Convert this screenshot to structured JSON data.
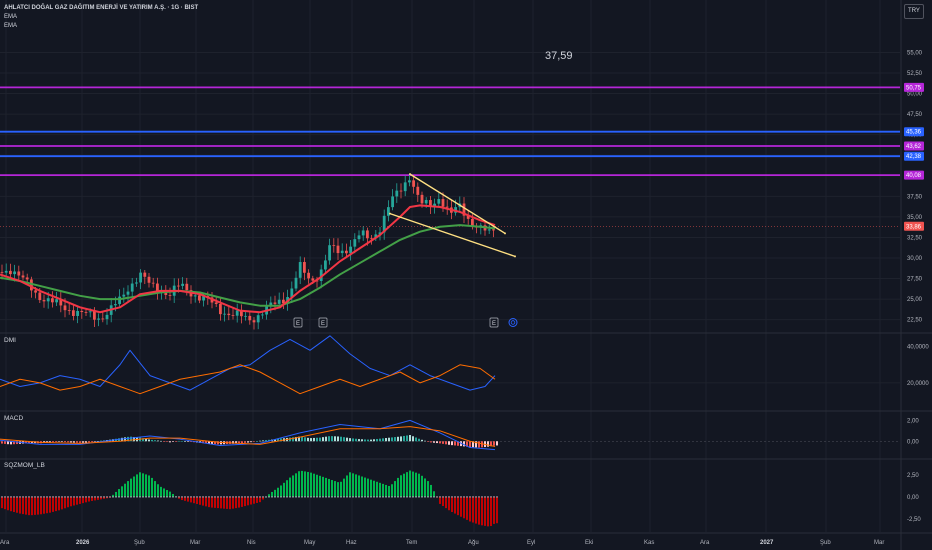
{
  "header": {
    "title": "AHLATCI DOĞAL GAZ DAĞITIM ENERJİ VE YATIRIM A.Ş. · 1G · BIST",
    "indicator1": "EMA",
    "indicator2": "EMA",
    "currency": "TRY",
    "price_readout": "37,59"
  },
  "colors": {
    "background": "#131722",
    "grid": "#1e222d",
    "up": "#26a69a",
    "down": "#ef5350",
    "ema_fast": "#f23645",
    "ema_slow": "#43a047",
    "magenta_line": "#b526d8",
    "blue_line": "#2962ff",
    "trend_line": "#ffe082",
    "dmi_plus": "#2962ff",
    "dmi_minus": "#ff6d00",
    "macd_line": "#2962ff",
    "signal_line": "#ff6d00",
    "sqz_pos": "#00c853",
    "sqz_neg": "#d50000"
  },
  "chart_data": [
    {
      "type": "candlestick",
      "pane": "price",
      "y_ticks": [
        "55,00",
        "52,50",
        "50,00",
        "47,50",
        "45,00",
        "42,50",
        "40,00",
        "37,50",
        "35,00",
        "32,50",
        "30,00",
        "27,50",
        "25,00",
        "22,50"
      ],
      "ylim": [
        21,
        57
      ],
      "last_price": 33.86,
      "last_price_label": "33,86",
      "horizontal_levels": [
        {
          "value": 50.75,
          "label": "50,75",
          "color": "magenta"
        },
        {
          "value": 45.36,
          "label": "45,36",
          "color": "blue"
        },
        {
          "value": 43.62,
          "label": "43,62",
          "color": "magenta"
        },
        {
          "value": 42.38,
          "label": "42,38",
          "color": "blue"
        },
        {
          "value": 40.08,
          "label": "40,08",
          "color": "magenta"
        }
      ],
      "event_markers": [
        "E",
        "E",
        "E"
      ],
      "series": [
        {
          "name": "EMA",
          "role": "fast"
        },
        {
          "name": "EMA",
          "role": "slow"
        }
      ],
      "close_path": [
        [
          0,
          28.3
        ],
        [
          10,
          28.8
        ],
        [
          20,
          27.6
        ],
        [
          30,
          26.5
        ],
        [
          40,
          25.4
        ],
        [
          50,
          24.6
        ],
        [
          60,
          24.2
        ],
        [
          70,
          23.8
        ],
        [
          80,
          23.2
        ],
        [
          90,
          23.0
        ],
        [
          100,
          22.8
        ],
        [
          110,
          23.6
        ],
        [
          120,
          24.8
        ],
        [
          130,
          26.8
        ],
        [
          140,
          28.0
        ],
        [
          150,
          26.6
        ],
        [
          160,
          26.2
        ],
        [
          170,
          25.6
        ],
        [
          180,
          26.6
        ],
        [
          190,
          26.0
        ],
        [
          200,
          25.2
        ],
        [
          210,
          24.6
        ],
        [
          220,
          23.8
        ],
        [
          230,
          23.2
        ],
        [
          240,
          22.8
        ],
        [
          250,
          22.6
        ],
        [
          260,
          23.2
        ],
        [
          270,
          24.0
        ],
        [
          280,
          24.8
        ],
        [
          290,
          25.8
        ],
        [
          300,
          28.8
        ],
        [
          310,
          27.2
        ],
        [
          320,
          28.2
        ],
        [
          330,
          31.2
        ],
        [
          340,
          30.6
        ],
        [
          350,
          31.6
        ],
        [
          360,
          32.8
        ],
        [
          370,
          32.2
        ],
        [
          380,
          33.8
        ],
        [
          390,
          36.6
        ],
        [
          400,
          38.2
        ],
        [
          410,
          40.2
        ],
        [
          420,
          36.6
        ],
        [
          430,
          36.2
        ],
        [
          440,
          37.6
        ],
        [
          450,
          35.2
        ],
        [
          460,
          36.2
        ],
        [
          470,
          34.6
        ],
        [
          480,
          33.6
        ],
        [
          490,
          32.8
        ],
        [
          495,
          33.8
        ]
      ],
      "ema_fast": [
        [
          0,
          28.0
        ],
        [
          20,
          27.2
        ],
        [
          40,
          26.0
        ],
        [
          60,
          25.0
        ],
        [
          80,
          24.0
        ],
        [
          100,
          23.4
        ],
        [
          120,
          24.0
        ],
        [
          140,
          25.6
        ],
        [
          160,
          26.0
        ],
        [
          180,
          26.0
        ],
        [
          200,
          25.6
        ],
        [
          220,
          24.6
        ],
        [
          240,
          23.6
        ],
        [
          260,
          23.4
        ],
        [
          280,
          24.0
        ],
        [
          300,
          26.0
        ],
        [
          320,
          27.6
        ],
        [
          340,
          29.6
        ],
        [
          360,
          31.2
        ],
        [
          380,
          32.8
        ],
        [
          400,
          35.0
        ],
        [
          410,
          36.2
        ],
        [
          420,
          36.4
        ],
        [
          440,
          36.2
        ],
        [
          460,
          35.6
        ],
        [
          480,
          34.6
        ],
        [
          495,
          34.0
        ]
      ],
      "ema_slow": [
        [
          0,
          27.6
        ],
        [
          20,
          27.2
        ],
        [
          40,
          26.6
        ],
        [
          60,
          26.0
        ],
        [
          80,
          25.4
        ],
        [
          100,
          25.0
        ],
        [
          120,
          25.0
        ],
        [
          140,
          25.4
        ],
        [
          160,
          25.8
        ],
        [
          180,
          26.0
        ],
        [
          200,
          25.8
        ],
        [
          220,
          25.2
        ],
        [
          240,
          24.6
        ],
        [
          260,
          24.2
        ],
        [
          280,
          24.2
        ],
        [
          300,
          25.0
        ],
        [
          320,
          26.4
        ],
        [
          340,
          28.0
        ],
        [
          360,
          29.4
        ],
        [
          380,
          30.8
        ],
        [
          400,
          32.2
        ],
        [
          420,
          33.2
        ],
        [
          440,
          33.8
        ],
        [
          460,
          34.0
        ],
        [
          480,
          33.8
        ],
        [
          495,
          33.6
        ]
      ],
      "trend_lines": [
        [
          [
            410,
            40.2
          ],
          [
            505,
            33.0
          ]
        ],
        [
          [
            390,
            35.4
          ],
          [
            515,
            30.2
          ]
        ]
      ]
    },
    {
      "type": "line",
      "pane": "DMI",
      "title": "DMI",
      "y_ticks": [
        "40,0000",
        "20,0000"
      ],
      "ylim": [
        5,
        47
      ],
      "series": [
        {
          "path": [
            [
              0,
              22
            ],
            [
              20,
              18
            ],
            [
              40,
              20
            ],
            [
              60,
              24
            ],
            [
              80,
              22
            ],
            [
              100,
              18
            ],
            [
              120,
              30
            ],
            [
              130,
              38
            ],
            [
              150,
              24
            ],
            [
              170,
              20
            ],
            [
              190,
              16
            ],
            [
              210,
              22
            ],
            [
              230,
              28
            ],
            [
              250,
              30
            ],
            [
              270,
              38
            ],
            [
              290,
              44
            ],
            [
              310,
              38
            ],
            [
              330,
              46
            ],
            [
              350,
              36
            ],
            [
              370,
              28
            ],
            [
              390,
              24
            ],
            [
              410,
              30
            ],
            [
              430,
              24
            ],
            [
              450,
              20
            ],
            [
              470,
              16
            ],
            [
              485,
              18
            ],
            [
              495,
              24
            ]
          ]
        },
        {
          "path": [
            [
              0,
              18
            ],
            [
              20,
              22
            ],
            [
              40,
              20
            ],
            [
              60,
              16
            ],
            [
              80,
              18
            ],
            [
              100,
              22
            ],
            [
              120,
              18
            ],
            [
              140,
              14
            ],
            [
              160,
              18
            ],
            [
              180,
              22
            ],
            [
              200,
              24
            ],
            [
              220,
              26
            ],
            [
              240,
              30
            ],
            [
              260,
              26
            ],
            [
              280,
              20
            ],
            [
              300,
              14
            ],
            [
              320,
              18
            ],
            [
              340,
              22
            ],
            [
              360,
              18
            ],
            [
              380,
              22
            ],
            [
              400,
              26
            ],
            [
              420,
              20
            ],
            [
              440,
              24
            ],
            [
              460,
              30
            ],
            [
              480,
              28
            ],
            [
              495,
              22
            ]
          ]
        }
      ]
    },
    {
      "type": "bar+line",
      "pane": "MACD",
      "title": "MACD",
      "y_ticks": [
        "2,00",
        "0,00"
      ],
      "ylim": [
        -1.6,
        2.8
      ],
      "histogram": [
        [
          0,
          -0.2
        ],
        [
          10,
          -0.3
        ],
        [
          20,
          -0.25
        ],
        [
          30,
          -0.15
        ],
        [
          40,
          -0.2
        ],
        [
          50,
          -0.1
        ],
        [
          60,
          -0.05
        ],
        [
          70,
          -0.1
        ],
        [
          80,
          -0.15
        ],
        [
          90,
          -0.1
        ],
        [
          100,
          0.05
        ],
        [
          110,
          0.15
        ],
        [
          120,
          0.3
        ],
        [
          130,
          0.45
        ],
        [
          140,
          0.35
        ],
        [
          150,
          0.15
        ],
        [
          160,
          0.05
        ],
        [
          170,
          -0.1
        ],
        [
          180,
          0.05
        ],
        [
          190,
          -0.05
        ],
        [
          200,
          -0.15
        ],
        [
          210,
          -0.25
        ],
        [
          220,
          -0.3
        ],
        [
          230,
          -0.25
        ],
        [
          240,
          -0.2
        ],
        [
          250,
          -0.1
        ],
        [
          260,
          0.05
        ],
        [
          270,
          0.15
        ],
        [
          280,
          0.25
        ],
        [
          290,
          0.35
        ],
        [
          300,
          0.45
        ],
        [
          310,
          0.3
        ],
        [
          320,
          0.35
        ],
        [
          330,
          0.5
        ],
        [
          340,
          0.45
        ],
        [
          350,
          0.3
        ],
        [
          360,
          0.2
        ],
        [
          370,
          0.15
        ],
        [
          380,
          0.25
        ],
        [
          390,
          0.35
        ],
        [
          400,
          0.45
        ],
        [
          410,
          0.6
        ],
        [
          420,
          0.2
        ],
        [
          430,
          -0.1
        ],
        [
          440,
          -0.2
        ],
        [
          450,
          -0.35
        ],
        [
          460,
          -0.45
        ],
        [
          470,
          -0.55
        ],
        [
          480,
          -0.6
        ],
        [
          490,
          -0.5
        ],
        [
          495,
          -0.4
        ]
      ],
      "series": [
        {
          "path": [
            [
              0,
              0.1
            ],
            [
              40,
              -0.3
            ],
            [
              80,
              -0.3
            ],
            [
              120,
              0.2
            ],
            [
              150,
              0.5
            ],
            [
              180,
              0.2
            ],
            [
              220,
              -0.4
            ],
            [
              260,
              -0.2
            ],
            [
              300,
              0.8
            ],
            [
              340,
              1.6
            ],
            [
              380,
              1.2
            ],
            [
              410,
              2.0
            ],
            [
              440,
              0.8
            ],
            [
              470,
              -0.6
            ],
            [
              495,
              -0.8
            ]
          ]
        },
        {
          "path": [
            [
              0,
              0.2
            ],
            [
              40,
              -0.1
            ],
            [
              80,
              -0.2
            ],
            [
              120,
              0.0
            ],
            [
              150,
              0.3
            ],
            [
              180,
              0.3
            ],
            [
              220,
              -0.1
            ],
            [
              260,
              -0.3
            ],
            [
              300,
              0.4
            ],
            [
              340,
              1.2
            ],
            [
              380,
              1.2
            ],
            [
              410,
              1.4
            ],
            [
              440,
              1.0
            ],
            [
              470,
              0.0
            ],
            [
              495,
              -0.5
            ]
          ]
        }
      ]
    },
    {
      "type": "bar",
      "pane": "SQZMOM_LB",
      "title": "SQZMOM_LB",
      "y_ticks": [
        "2,50",
        "0,00",
        "-2,50"
      ],
      "ylim": [
        -4,
        4.2
      ],
      "values": [
        [
          0,
          -1.2
        ],
        [
          10,
          -1.6
        ],
        [
          20,
          -1.9
        ],
        [
          30,
          -2.1
        ],
        [
          40,
          -2.0
        ],
        [
          50,
          -1.8
        ],
        [
          60,
          -1.5
        ],
        [
          70,
          -1.1
        ],
        [
          80,
          -0.8
        ],
        [
          90,
          -0.5
        ],
        [
          100,
          -0.3
        ],
        [
          110,
          -0.1
        ],
        [
          120,
          1.0
        ],
        [
          130,
          2.0
        ],
        [
          140,
          2.8
        ],
        [
          150,
          2.4
        ],
        [
          160,
          1.2
        ],
        [
          170,
          0.6
        ],
        [
          180,
          -0.3
        ],
        [
          190,
          -0.6
        ],
        [
          200,
          -0.9
        ],
        [
          210,
          -1.2
        ],
        [
          220,
          -1.3
        ],
        [
          230,
          -1.4
        ],
        [
          240,
          -1.2
        ],
        [
          250,
          -0.9
        ],
        [
          260,
          -0.6
        ],
        [
          270,
          0.4
        ],
        [
          280,
          1.2
        ],
        [
          290,
          2.2
        ],
        [
          300,
          3.0
        ],
        [
          310,
          2.8
        ],
        [
          320,
          2.4
        ],
        [
          330,
          2.0
        ],
        [
          340,
          1.6
        ],
        [
          350,
          2.8
        ],
        [
          360,
          2.4
        ],
        [
          370,
          2.0
        ],
        [
          380,
          1.6
        ],
        [
          390,
          1.2
        ],
        [
          400,
          2.4
        ],
        [
          410,
          3.0
        ],
        [
          420,
          2.6
        ],
        [
          430,
          1.6
        ],
        [
          440,
          -0.8
        ],
        [
          450,
          -1.6
        ],
        [
          460,
          -2.2
        ],
        [
          470,
          -2.8
        ],
        [
          480,
          -3.2
        ],
        [
          490,
          -3.4
        ],
        [
          495,
          -3.0
        ]
      ]
    }
  ],
  "x_axis": {
    "labels": [
      {
        "text": "Ara"
      },
      {
        "text": "2026"
      },
      {
        "text": "Şub"
      },
      {
        "text": "Mar"
      },
      {
        "text": "Nis"
      },
      {
        "text": "May"
      },
      {
        "text": "Haz"
      },
      {
        "text": "Tem"
      },
      {
        "text": "Ağu"
      },
      {
        "text": "Eyl"
      },
      {
        "text": "Eki"
      },
      {
        "text": "Kas"
      },
      {
        "text": "Ara"
      },
      {
        "text": "2027"
      },
      {
        "text": "Şub"
      },
      {
        "text": "Mar"
      }
    ]
  }
}
